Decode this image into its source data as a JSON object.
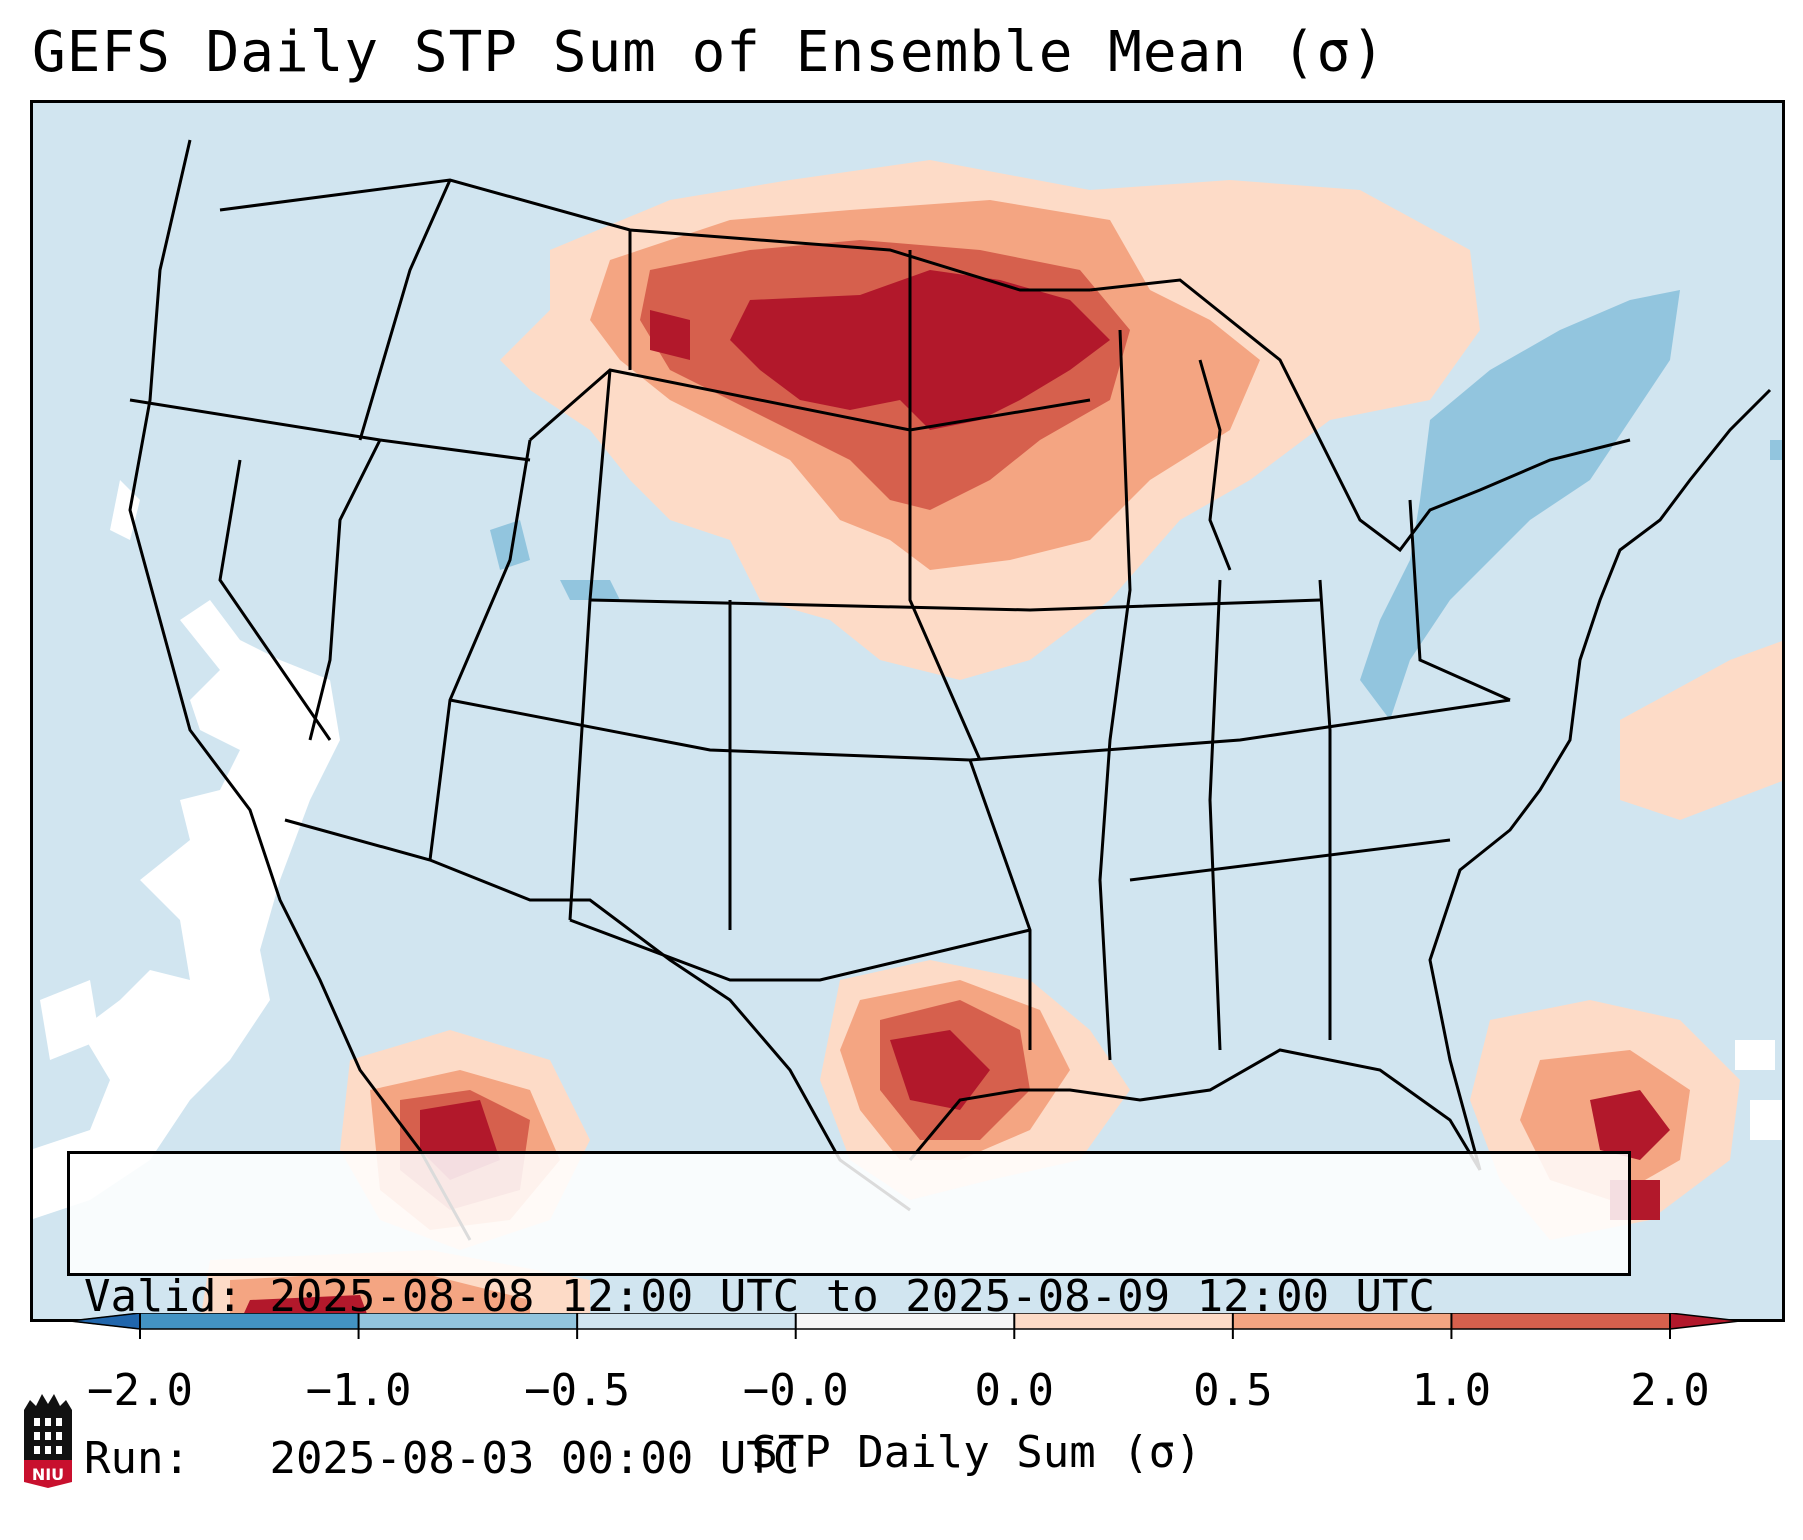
{
  "title": "GEFS Daily STP Sum of Ensemble Mean (σ)",
  "info": {
    "valid_label": "Valid:",
    "valid_value": "2025-08-08 12:00 UTC to 2025-08-09 12:00 UTC",
    "run_label": "Run:",
    "run_value": "2025-08-03 00:00 UTC"
  },
  "colorbar": {
    "label": "STP Daily Sum (σ)",
    "ticks": [
      "−2.0",
      "−1.0",
      "−0.5",
      "−0.0",
      "0.0",
      "0.5",
      "1.0",
      "2.0"
    ],
    "colors": [
      "#2166ac",
      "#4393c3",
      "#92c5de",
      "#d1e5f0",
      "#f7f7f7",
      "#fddbc7",
      "#f4a582",
      "#d6604d",
      "#b2182b"
    ]
  },
  "map_colors": {
    "background": "#d1e5f0",
    "neutral": "#ffffff",
    "light_red": "#fddbc7",
    "mid_red": "#f4a582",
    "dark_red": "#d6604d",
    "deep_red": "#b2182b",
    "light_blue": "#92c5de"
  },
  "logo": {
    "text": "NIU",
    "color": "#c8102e"
  }
}
